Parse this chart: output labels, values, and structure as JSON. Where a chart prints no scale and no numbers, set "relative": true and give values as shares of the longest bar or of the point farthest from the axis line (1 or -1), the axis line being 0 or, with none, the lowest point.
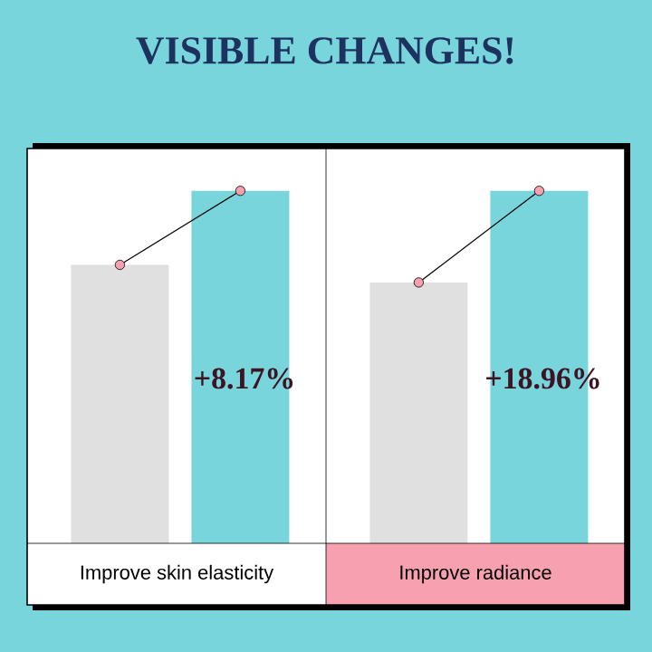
{
  "chart_data": [
    {
      "type": "bar",
      "title": "VISIBLE CHANGES!",
      "relative": true,
      "categories": [
        null,
        null
      ],
      "xlabel": "Improve skin elasticity",
      "annotations": [
        "+8.17%"
      ],
      "colors": [
        "#e0e0e0",
        "#79d5dc"
      ],
      "values": [
        0.79,
        1
      ]
    },
    {
      "type": "bar",
      "relative": true,
      "categories": [
        null,
        null
      ],
      "xlabel": "Improve radiance",
      "annotations": [
        "+18.96%"
      ],
      "colors": [
        "#e0e0e0",
        "#79d5dc"
      ],
      "values": [
        0.74,
        1
      ]
    }
  ]
}
